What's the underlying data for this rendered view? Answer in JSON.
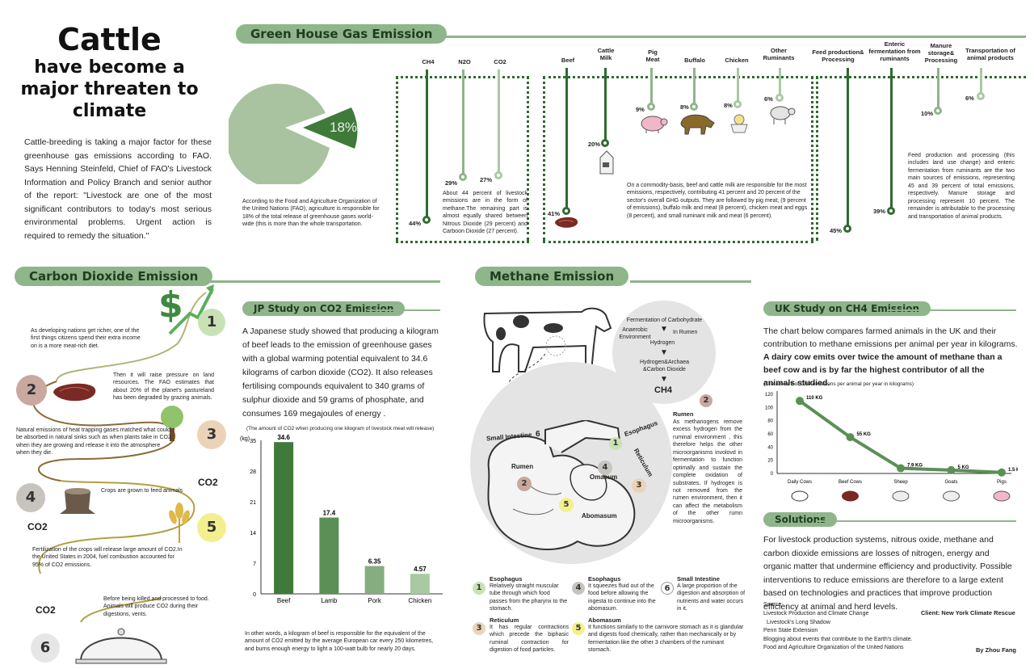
{
  "title": {
    "line1": "Cattle",
    "line2": "have become a",
    "line3": "major threaten to",
    "line4": "climate"
  },
  "intro": "Cattle-breeding is taking a major factor for these greenhouse gas emissions according to FAO. Says Henning Steinfeld, Chief of FAO's Livestock Information and Policy Branch and senior author of the report: \"Livestock are one of the most significant contributors to today's most serious environmental problems. Urgent action is required to remedy the situation.\"",
  "ghg": {
    "heading": "Green House Gas Emission",
    "pie_value": "18%",
    "pie_note": "According to the Food and Agriculture Organization of the United Nations (FAO), agriculture is responsible for 18% of the total release of greenhouse gases world-wide (this is more than the whole transportation.",
    "gases": [
      {
        "name": "CH4",
        "pct": "44%"
      },
      {
        "name": "N2O",
        "pct": "29%"
      },
      {
        "name": "CO2",
        "pct": "27%"
      }
    ],
    "gas_note": "About 44 percent of livestock emissions are in the form of methane.The remaining part is almost equally shared between Nitrous Dioxide (29 percent) and Carboon Dioxide (27 percent).",
    "products": [
      {
        "name": "Beef",
        "pct": "41%"
      },
      {
        "name": "Cattle Milk",
        "pct": "20%"
      },
      {
        "name": "Pig Meat",
        "pct": "9%"
      },
      {
        "name": "Buffalo",
        "pct": "8%"
      },
      {
        "name": "Chicken",
        "pct": "8%"
      },
      {
        "name": "Other Ruminants",
        "pct": "6%"
      }
    ],
    "product_note": "On a commodity-basis, beef and cattle milk are responsible for the most emissions, respectively, contributing 41 percent and 20 percent of the sector's overall GHG outputs. They are followed by pig meat, (9 percent of emissions), buffalo milk and meat (8 percent), chicken meat and eggs (8 percent), and small ruminant milk and meat (6 percent).",
    "sources": [
      {
        "name": "Feed production& Processing",
        "pct": "45%"
      },
      {
        "name": "Enteric fermentation from ruminants",
        "pct": "39%"
      },
      {
        "name": "Manure storage& Processing",
        "pct": "10%"
      },
      {
        "name": "Transportation of animal products",
        "pct": "6%"
      }
    ],
    "source_note": "Feed production and processing (this includes land use change) and enteric fermentation from ruminants are the two main sources of emissions, representing 45 and 39 percent of total emissions, respectively. Manure storage and processing represent 10 percent. The remainder is attributable to the processing and transportation of animal products."
  },
  "co2": {
    "heading": "Carbon Dioxide Emission",
    "steps": [
      {
        "n": "1",
        "text": "As developing nations get richer, one of the first things citizens spend their extra income on is a more meat-rich diet."
      },
      {
        "n": "2",
        "text": "Then it will raise pressure on land resources. The FAO estimates that about 20% of the planet's pastureland has been degraded by grazing animals."
      },
      {
        "n": "3",
        "text": "Natural emissions of heat trapping gases matched what could be absorbed in natural sinks such as when plants take in CO2 when they are growing and release it into the atmosphere when they die."
      },
      {
        "n": "4",
        "text": "Crops are grown to feed animals"
      },
      {
        "n": "5",
        "text": "Fertilization of the crops will release large amount of CO2.In the United States in 2004, fuel combustion accounted for 95% of CO2 emissions."
      },
      {
        "n": "6",
        "text": "Before being killed and processed to food. Animals will produce CO2 during their digestions, vents."
      }
    ],
    "co2_label": "CO2",
    "dollar": "$"
  },
  "jp": {
    "heading": "JP Study on CO2 Emission",
    "text": "A Japanese study showed that producing a kilogram of beef leads to the emission of greenhouse gases with a global warming potential equivalent to 34.6 kilograms of carbon dioxide (CO2). It also releases fertilising compounds equivalent to 340 grams of sulphur dioxide and 59 grams of phosphate, and consumes 169 megajoules of energy .",
    "chart_caption": "(The amount of CO2 when producing one kilogram of livestock meat will release)",
    "footer": "In other words, a kilogram of beef is responsible for the equivalent of the amount of CO2 emitted by the average European car every 250 kilometres, and burns enough energy to light a 100-watt bulb for nearly 20 days."
  },
  "methane": {
    "heading": "Methane Emission",
    "flow": {
      "l1": "Fermentation of Carbohydrate",
      "l2": "Anaerobic Environment",
      "l3": "In Rumen",
      "l4": "Hydrogen",
      "l5": "Hydrogen&Archaea &Carbon Dioxide",
      "l6": "CH4"
    },
    "rumen_title": "Rumen",
    "rumen_text": "As methanogens remove excess hydrogen from the ruminal environment , this therefore helps the other microorganisms involovd in fermentation to function optimally and sustain the complete oxidation of substrates. If hydrogen is not removed from the rumen environment, then it can affect the metabolism of the other rumn microorganisms.",
    "organs": {
      "small_int": "Small Intestine",
      "esoph": "Esophagus",
      "rumen": "Rumen",
      "omasum": "Omasum",
      "reticulum": "Reticulum",
      "abomasum": "Abomasum"
    },
    "legend": [
      {
        "n": "1",
        "title": "Esophagus",
        "text": "Relatively straight muscular tube through which food passes from the pharynx to the stomach."
      },
      {
        "n": "3",
        "title": "Reticulum",
        "text": "It has regular contractions which precede the biphasic ruminal contraction for digestion of food particles."
      },
      {
        "n": "4",
        "title": "Esophagus",
        "text": "It squeezes fluid out of the food before allowing the ingesta to continue into the abomasum."
      },
      {
        "n": "5",
        "title": "Abomasum",
        "text": "It functions similarly to the carnivore stomach as it is glandular and digests food chemically, rather than mechanically or by fermentation like the other 3 chambers of the ruminant stomach."
      },
      {
        "n": "6",
        "title": "Small Intestine",
        "text": "A large proportion of the digestion and absorption of nutrients and water occurs in it."
      }
    ]
  },
  "uk": {
    "heading": "UK Study on CH4 Emission",
    "text_a": "The chart below compares farmed animals in the UK and their contribution to methane emissions per animal per year in kilograms.",
    "text_b": "A dairy cow emits over twice the amount of methane than a beef cow and is by far the highest contributor of all the animals studied.",
    "chart_caption": "(The amount of CH4 emissions per animal per year in kilograms)"
  },
  "solutions": {
    "heading": "Solutions",
    "text": "For livestock production systems, nitrous oxide, methane and carbon dioxide emissions are losses of nitrogen, energy and organic matter that undermine efficiency and productivity. Possible interventions to reduce emissions are therefore to a large extent based on technologies and practices that improve production efficiency at animal and herd levels.",
    "source_label": "Source:",
    "sources": [
      "Livestock Production and Climate Change",
      "Livestock's Long Shadow",
      "Penn State Extension",
      "Blogging about events that contribute to the Earth's climate.",
      "Food and Agriculture Organization of the United Nations"
    ],
    "client": "Client: New York Climate Rescue",
    "author": "By Zhou Fang"
  },
  "colors": {
    "accent": "#8fb58a",
    "dark": "#2e6b2e",
    "mid": "#5c8f56",
    "light": "#a9c9a3"
  },
  "chart_data": [
    {
      "type": "bar",
      "categories": [
        "Beef",
        "Lamb",
        "Pork",
        "Chicken"
      ],
      "values": [
        34.6,
        17.4,
        6.35,
        4.57
      ],
      "value_labels": [
        "34.6",
        "17.4",
        "6.35",
        "4.57"
      ],
      "ylabel": "(kg)",
      "ylim": [
        0,
        35
      ],
      "yticks": [
        0,
        7,
        14,
        21,
        28,
        35
      ]
    },
    {
      "type": "line",
      "categories": [
        "Daily Cows",
        "Beef Cows",
        "Sheep",
        "Goats",
        "Pigs"
      ],
      "values": [
        110,
        55,
        7.9,
        5,
        1.5
      ],
      "value_labels": [
        "110 KG",
        "55 KG",
        "7.9 KG",
        "5 KG",
        "1.5 KG"
      ],
      "ylim": [
        0,
        120
      ],
      "yticks": [
        0,
        20,
        40,
        60,
        80,
        100,
        120
      ]
    }
  ]
}
